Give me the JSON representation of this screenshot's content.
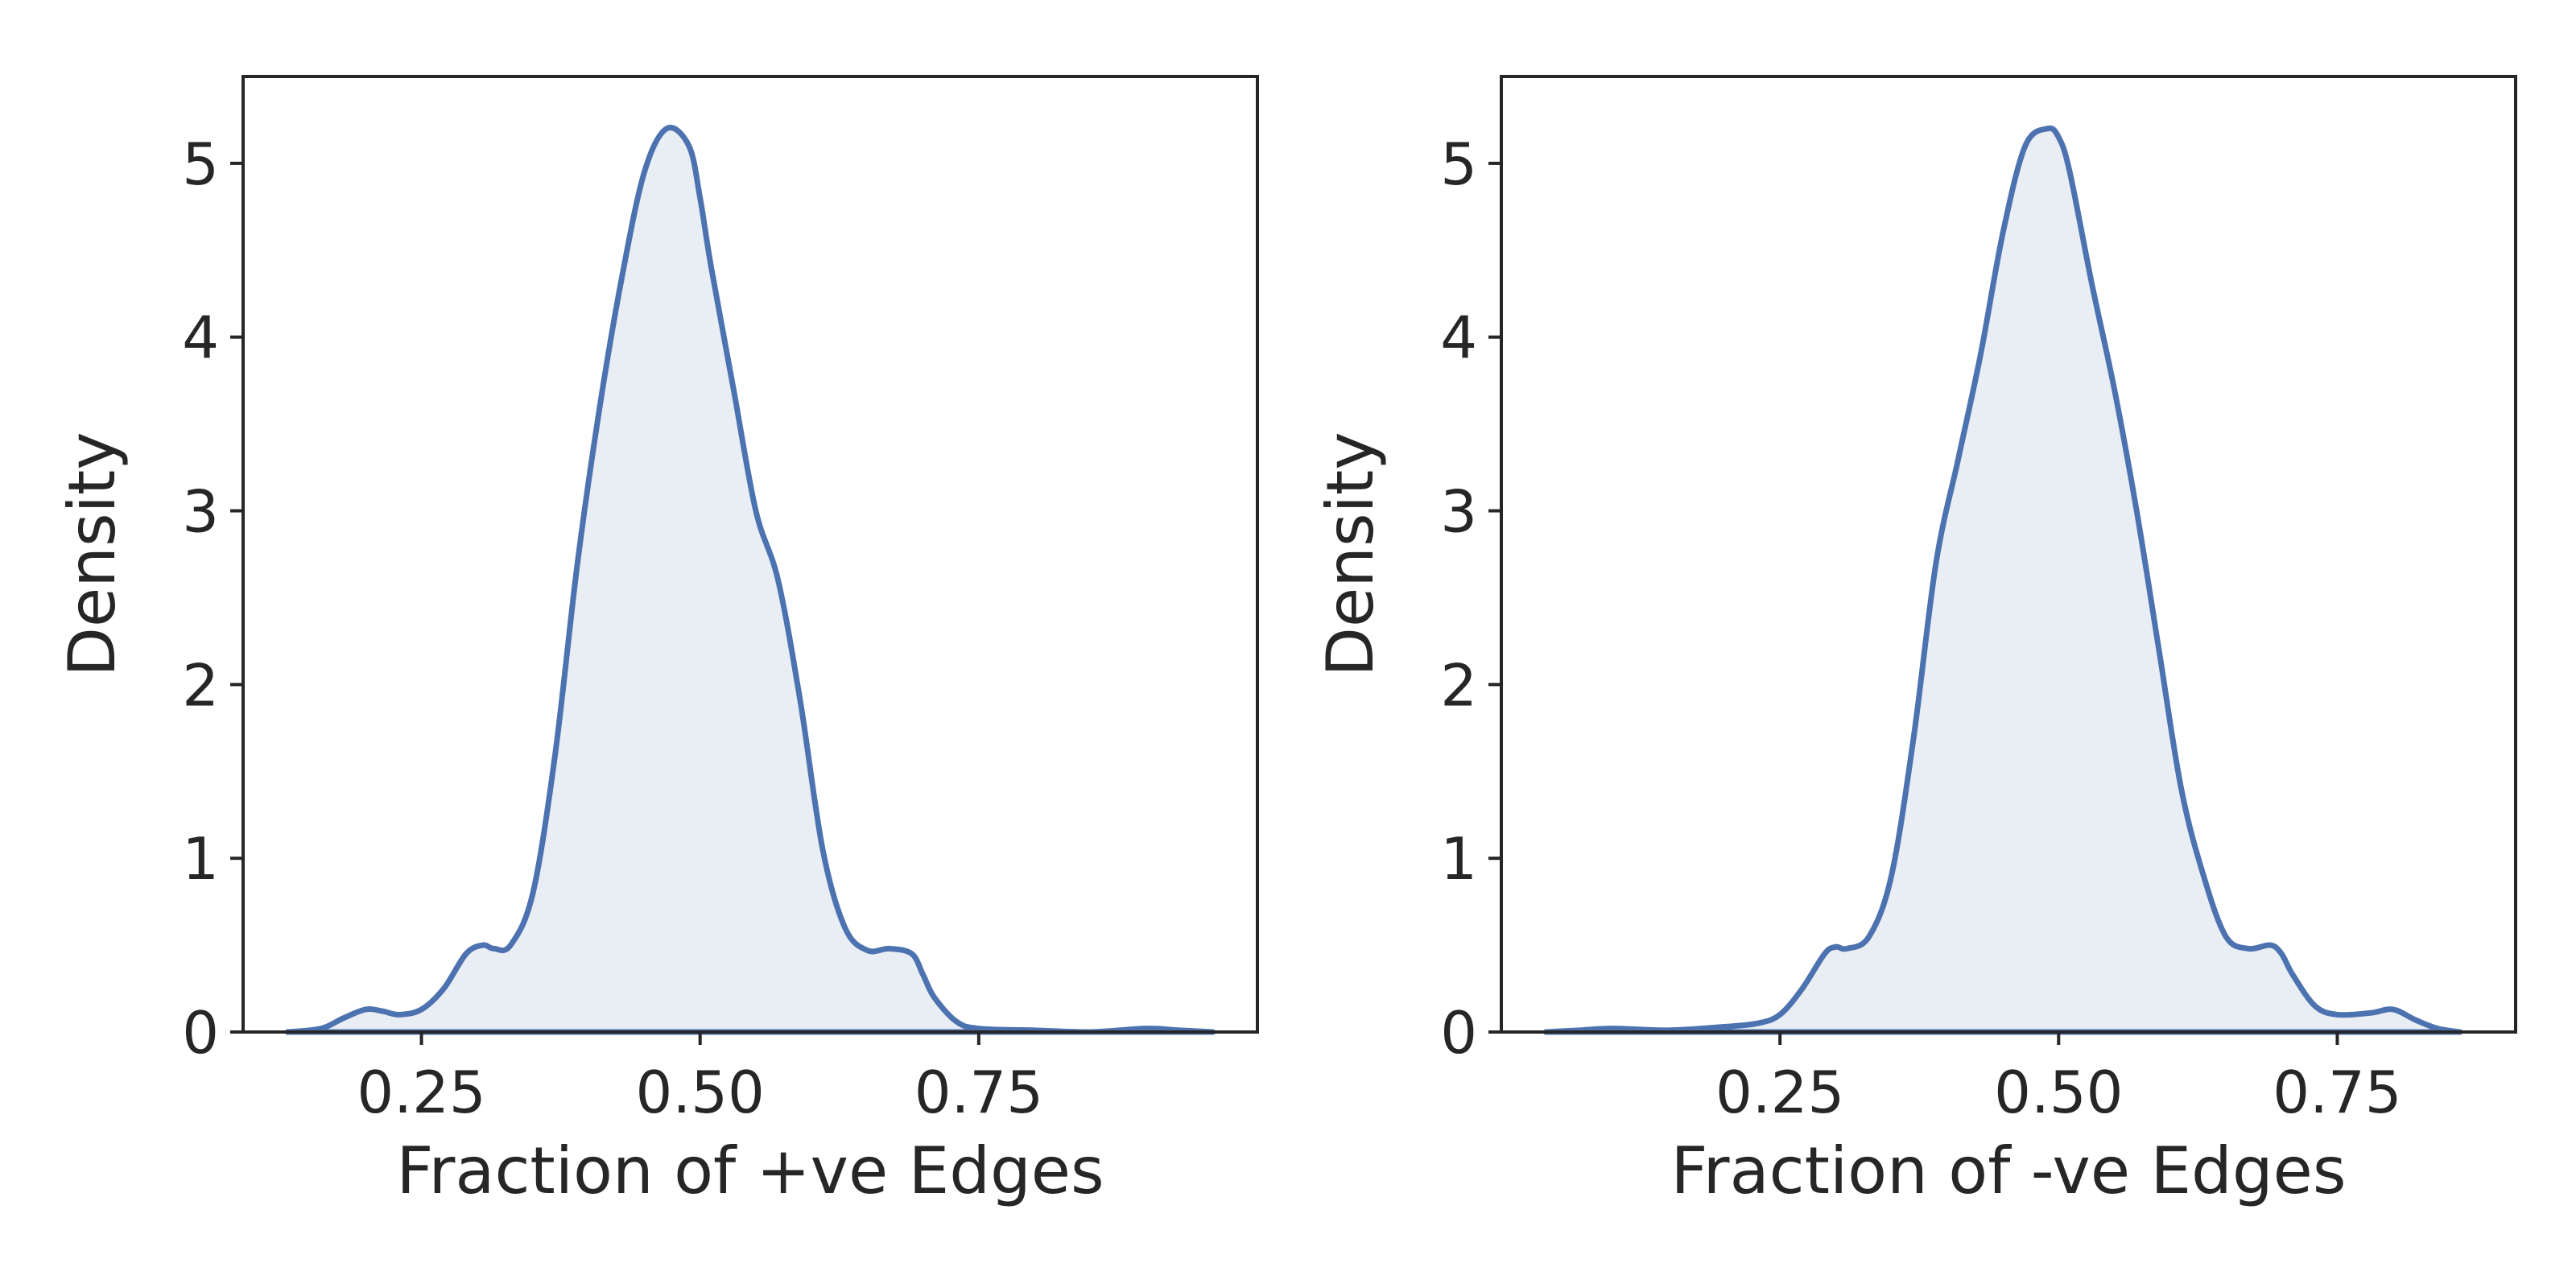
{
  "chart_data": [
    {
      "type": "area",
      "title": "",
      "xlabel": "Fraction of +ve Edges",
      "ylabel": "Density",
      "xlim": [
        0.09,
        1.0
      ],
      "ylim": [
        0,
        5.5
      ],
      "xticks": [
        0.25,
        0.5,
        0.75
      ],
      "xtick_labels": [
        "0.25",
        "0.50",
        "0.75"
      ],
      "yticks": [
        0,
        1,
        2,
        3,
        4,
        5
      ],
      "ytick_labels": [
        "0",
        "1",
        "2",
        "3",
        "4",
        "5"
      ],
      "grid": false,
      "color": "#4c72b0",
      "series": [
        {
          "x": [
            0.13,
            0.16,
            0.18,
            0.2,
            0.215,
            0.23,
            0.25,
            0.27,
            0.29,
            0.305,
            0.315,
            0.33,
            0.35,
            0.37,
            0.39,
            0.41,
            0.43,
            0.45,
            0.47,
            0.49,
            0.5,
            0.51,
            0.53,
            0.55,
            0.57,
            0.59,
            0.61,
            0.63,
            0.65,
            0.67,
            0.69,
            0.7,
            0.71,
            0.73,
            0.75,
            0.8,
            0.85,
            0.9,
            0.93,
            0.96
          ],
          "y": [
            0.0,
            0.02,
            0.08,
            0.13,
            0.12,
            0.1,
            0.13,
            0.25,
            0.45,
            0.5,
            0.48,
            0.5,
            0.8,
            1.6,
            2.7,
            3.6,
            4.35,
            4.95,
            5.2,
            5.1,
            4.8,
            4.4,
            3.7,
            3.0,
            2.6,
            1.9,
            1.05,
            0.6,
            0.47,
            0.48,
            0.45,
            0.33,
            0.2,
            0.06,
            0.02,
            0.01,
            0.0,
            0.02,
            0.01,
            0.0
          ]
        }
      ]
    },
    {
      "type": "area",
      "title": "",
      "xlabel": "Fraction of -ve Edges",
      "ylabel": "Density",
      "xlim": [
        0.0,
        0.91
      ],
      "ylim": [
        0,
        5.5
      ],
      "xticks": [
        0.25,
        0.5,
        0.75
      ],
      "xtick_labels": [
        "0.25",
        "0.50",
        "0.75"
      ],
      "yticks": [
        0,
        1,
        2,
        3,
        4,
        5
      ],
      "ytick_labels": [
        "0",
        "1",
        "2",
        "3",
        "4",
        "5"
      ],
      "grid": false,
      "color": "#4c72b0",
      "series": [
        {
          "x": [
            0.04,
            0.07,
            0.1,
            0.15,
            0.2,
            0.23,
            0.25,
            0.27,
            0.29,
            0.3,
            0.31,
            0.33,
            0.35,
            0.37,
            0.39,
            0.41,
            0.43,
            0.45,
            0.47,
            0.49,
            0.5,
            0.51,
            0.53,
            0.55,
            0.57,
            0.59,
            0.61,
            0.63,
            0.65,
            0.67,
            0.69,
            0.7,
            0.71,
            0.73,
            0.75,
            0.78,
            0.8,
            0.82,
            0.84,
            0.86
          ],
          "y": [
            0.0,
            0.01,
            0.02,
            0.01,
            0.03,
            0.05,
            0.1,
            0.25,
            0.45,
            0.49,
            0.48,
            0.55,
            0.9,
            1.7,
            2.7,
            3.3,
            3.9,
            4.6,
            5.1,
            5.2,
            5.15,
            4.95,
            4.3,
            3.7,
            3.0,
            2.2,
            1.4,
            0.9,
            0.55,
            0.48,
            0.5,
            0.45,
            0.33,
            0.15,
            0.1,
            0.11,
            0.13,
            0.07,
            0.02,
            0.0
          ]
        }
      ]
    }
  ]
}
